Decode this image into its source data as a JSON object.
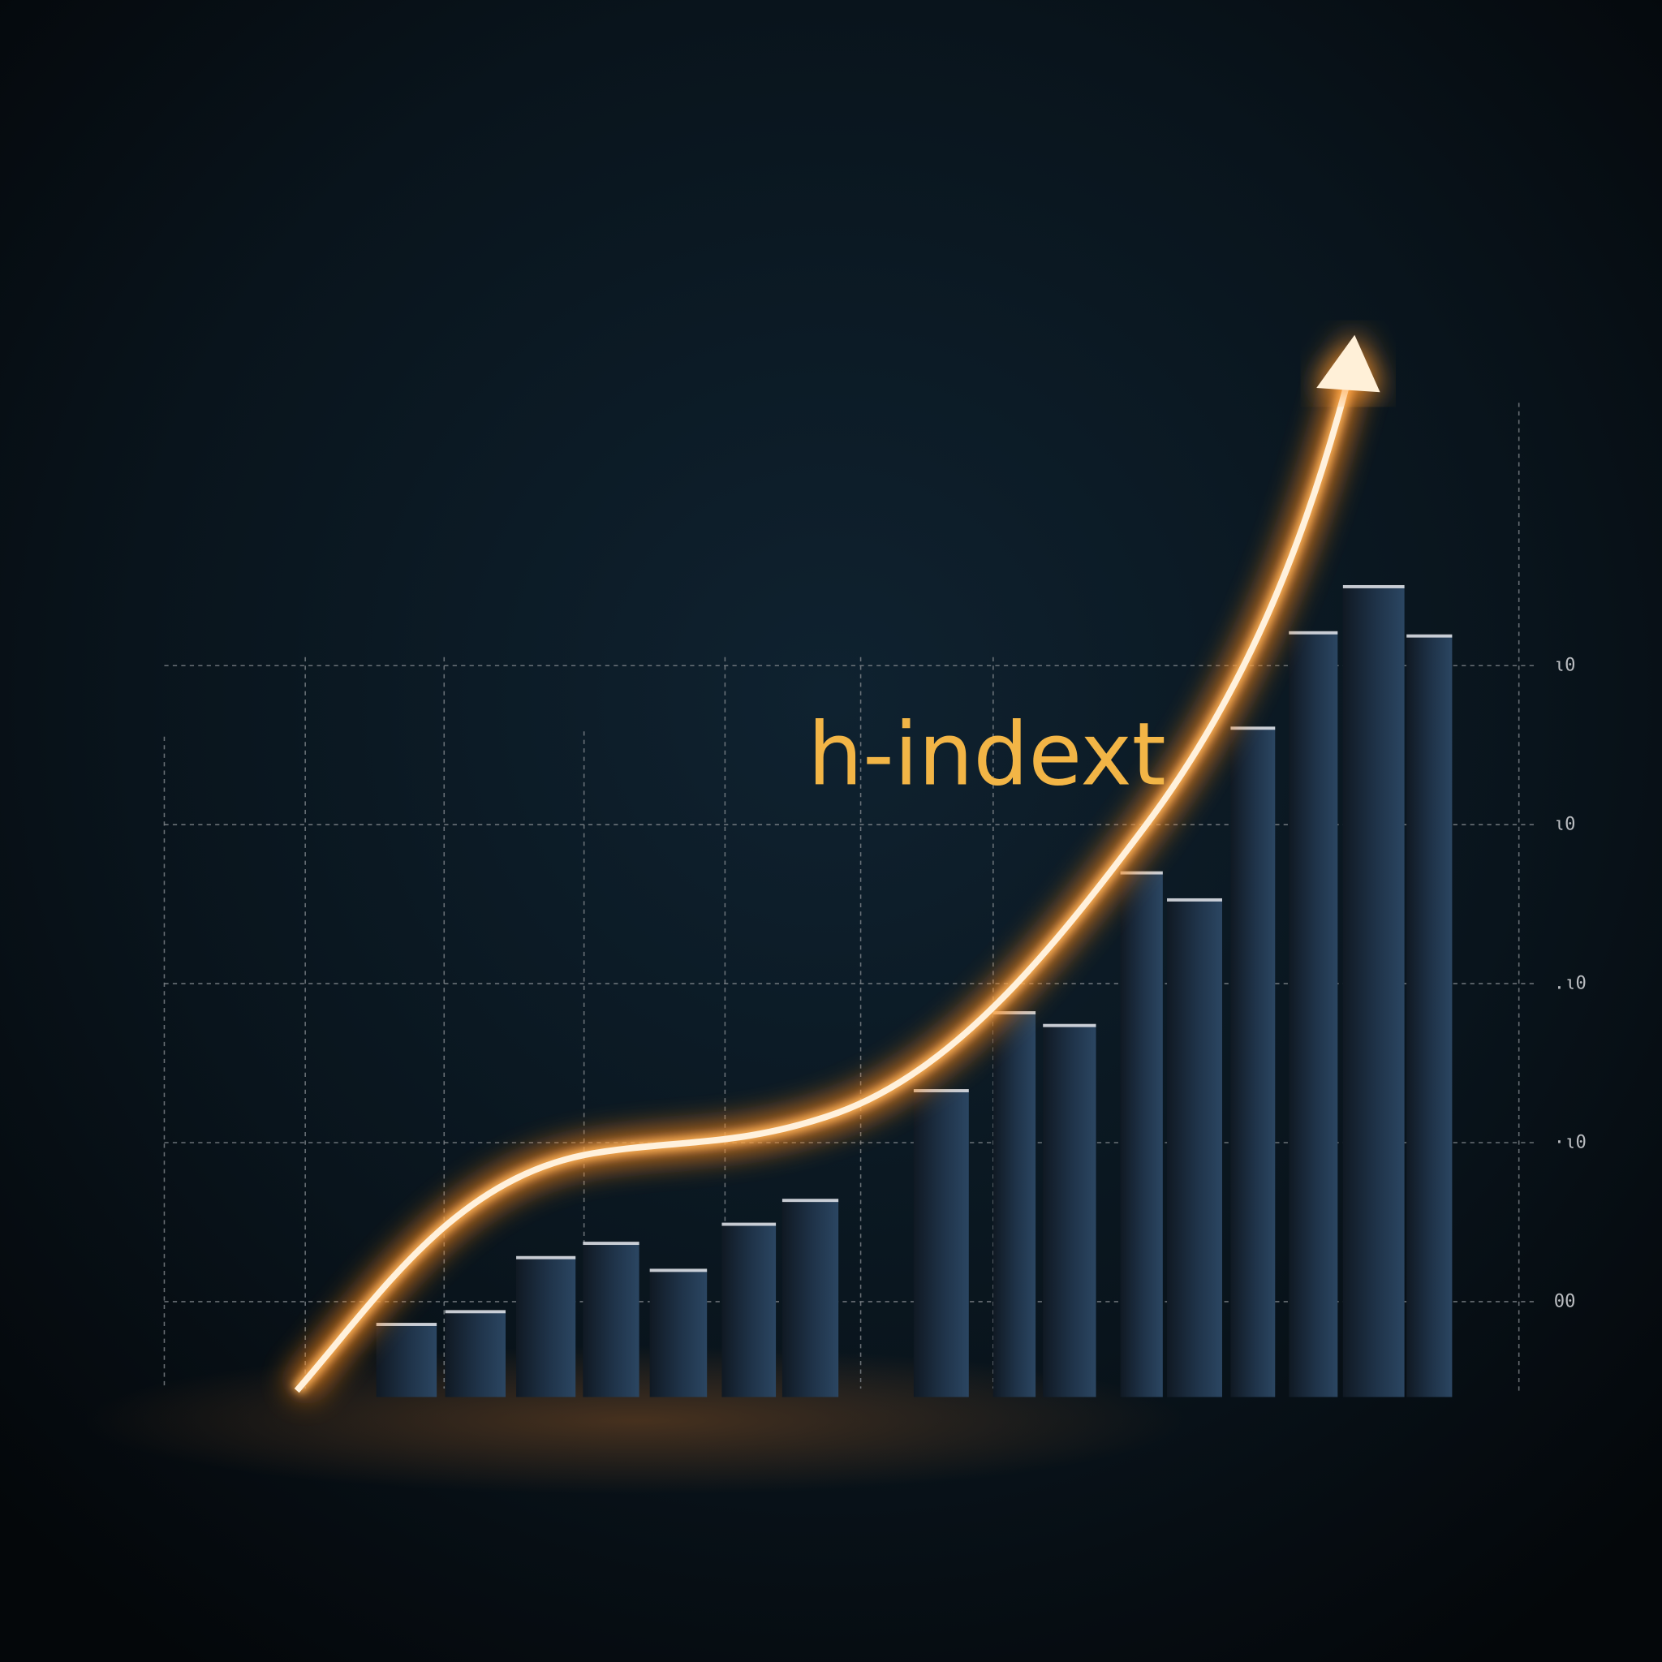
{
  "chart_data": {
    "type": "bar",
    "title": "h-indext",
    "categories": [
      null,
      null,
      null,
      null,
      null,
      null,
      null,
      null,
      null,
      null,
      null,
      null,
      null,
      null,
      null,
      null
    ],
    "values": [
      0.86,
      0.94,
      1.28,
      1.37,
      1.2,
      1.49,
      1.64,
      2.33,
      2.82,
      2.74,
      3.7,
      3.53,
      4.61,
      5.21,
      5.5,
      5.19
    ],
    "color": "#1f3349",
    "ylim": [
      0.4,
      7.4
    ],
    "yticks": [
      {
        "value": 1,
        "label": "00"
      },
      {
        "value": 2,
        "label": "·ι0"
      },
      {
        "value": 3,
        "label": ".ι0"
      },
      {
        "value": 4,
        "label": "ι0"
      },
      {
        "value": 5,
        "label": "ι0"
      }
    ],
    "grid": true
  }
}
